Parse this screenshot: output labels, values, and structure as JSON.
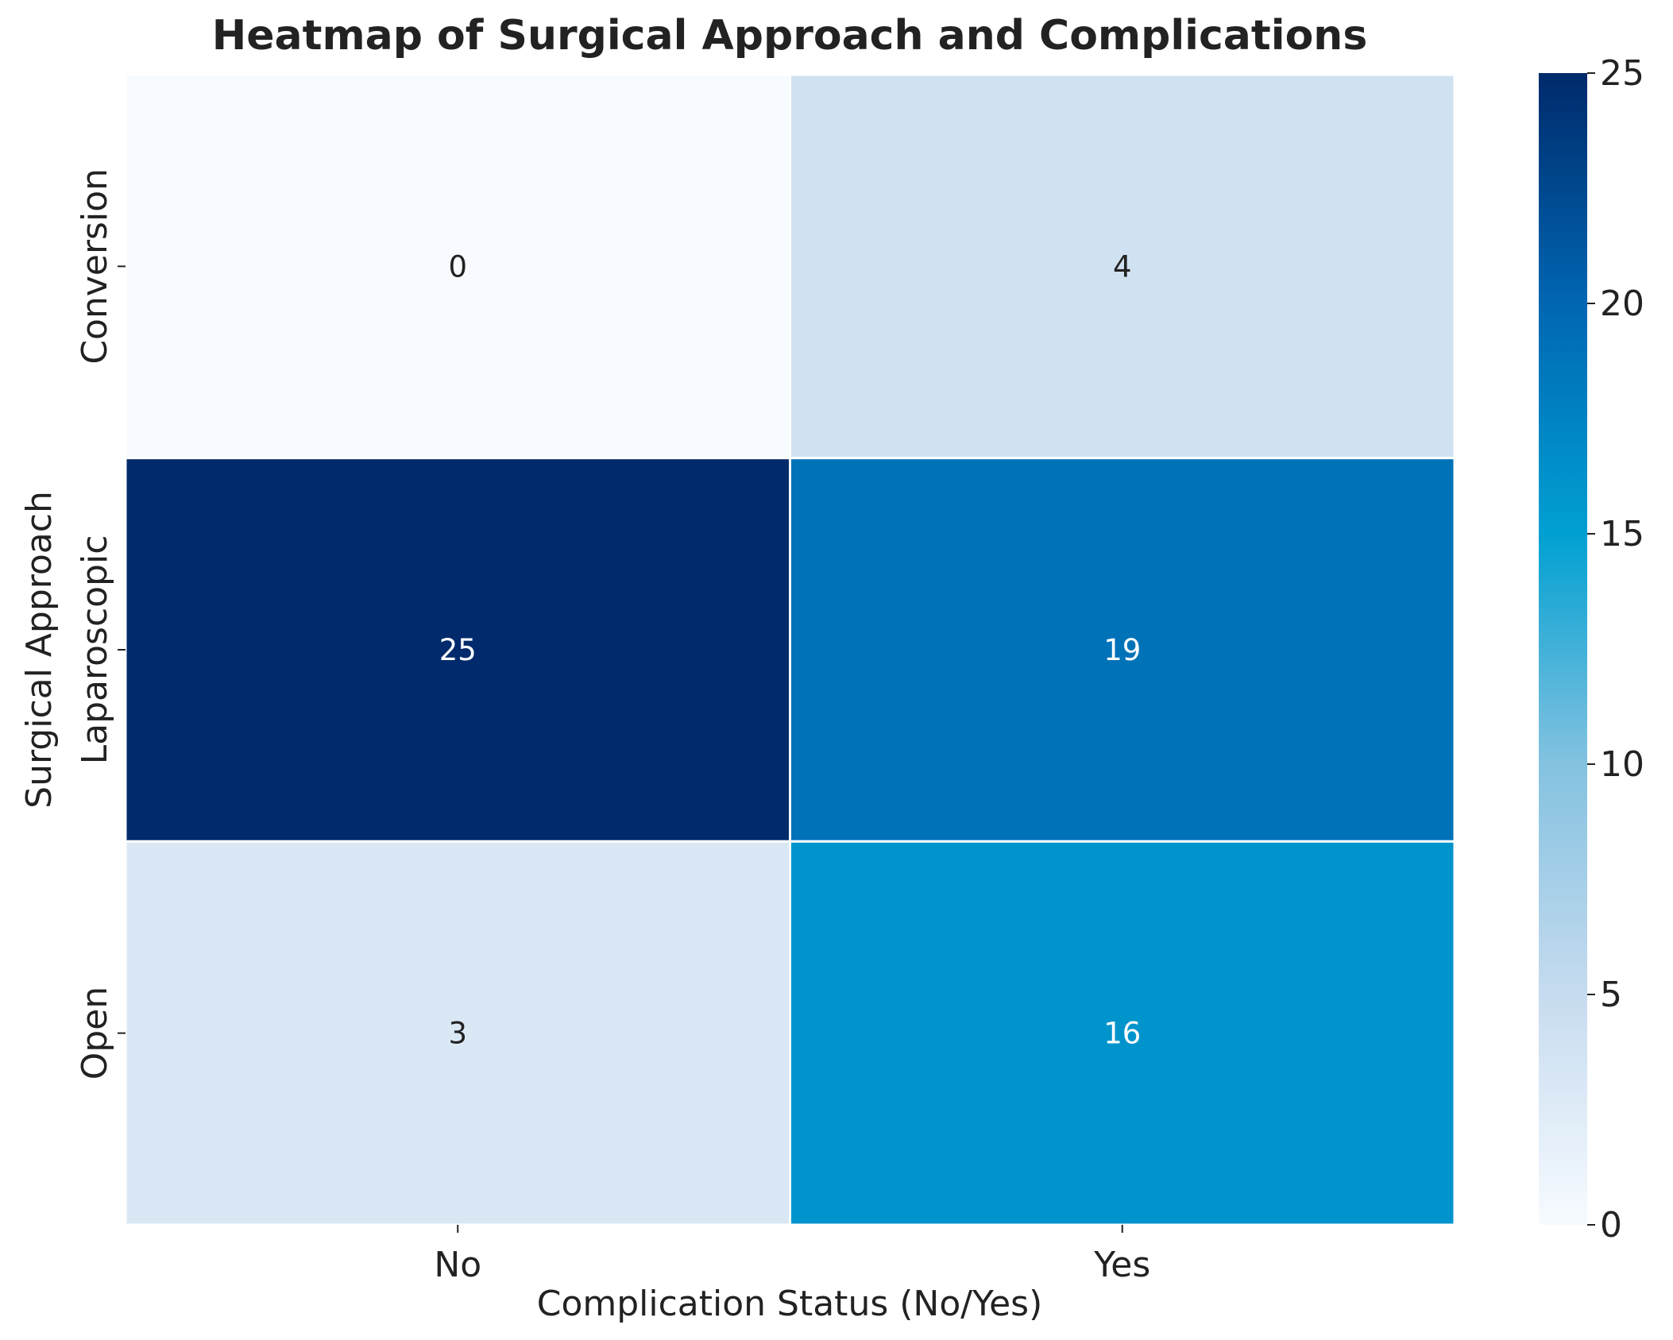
{
  "chart_data": {
    "type": "heatmap",
    "title": "Heatmap of Surgical Approach and Complications",
    "xlabel": "Complication Status (No/Yes)",
    "ylabel": "Surgical Approach",
    "x_categories": [
      "No",
      "Yes"
    ],
    "y_categories": [
      "Conversion",
      "Laparoscopic",
      "Open"
    ],
    "values": [
      [
        0,
        4
      ],
      [
        25,
        19
      ],
      [
        3,
        16
      ]
    ],
    "annotations": [
      [
        "0",
        "4"
      ],
      [
        "25",
        "19"
      ],
      [
        "3",
        "16"
      ]
    ],
    "colorbar": {
      "range": [
        0,
        25
      ],
      "ticks": [
        0,
        5,
        10,
        15,
        20,
        25
      ],
      "tick_labels": [
        "0",
        "5",
        "10",
        "15",
        "20",
        "25"
      ],
      "colormap": [
        {
          "value": 0,
          "color": "#f7fbff"
        },
        {
          "value": 5,
          "color": "#c6dbef"
        },
        {
          "value": 10,
          "color": "#84c2e0"
        },
        {
          "value": 15,
          "color": "#00a0d2"
        },
        {
          "value": 20,
          "color": "#0066b2"
        },
        {
          "value": 25,
          "color": "#002a6b"
        }
      ]
    },
    "grid": false,
    "legend": "colorbar-right"
  }
}
